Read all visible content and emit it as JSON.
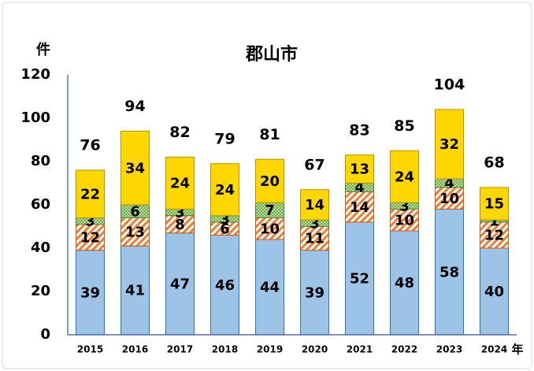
{
  "chart_data": {
    "type": "stacked_bar",
    "title": "郡山市",
    "y_unit": "件",
    "x_unit": "年",
    "categories": [
      "2015",
      "2016",
      "2017",
      "2018",
      "2019",
      "2020",
      "2021",
      "2022",
      "2023",
      "2024"
    ],
    "series": [
      {
        "color": "#9dc3e6",
        "edge": "#2e75b6",
        "hatch": "none",
        "values": [
          39,
          41,
          47,
          46,
          44,
          39,
          52,
          48,
          58,
          40
        ]
      },
      {
        "color": "#ed7d31",
        "edge": "#c55a11",
        "hatch": "diagonal",
        "values": [
          12,
          13,
          8,
          6,
          10,
          11,
          14,
          10,
          10,
          12
        ]
      },
      {
        "color": "#70ad47",
        "edge": "#548235",
        "hatch": "cross",
        "values": [
          3,
          6,
          3,
          3,
          7,
          3,
          4,
          3,
          4,
          1
        ]
      },
      {
        "color": "#ffd700",
        "edge": "#bf9000",
        "hatch": "none",
        "values": [
          22,
          34,
          24,
          24,
          20,
          14,
          13,
          24,
          32,
          15
        ]
      }
    ],
    "totals": [
      76,
      94,
      82,
      79,
      81,
      67,
      83,
      85,
      104,
      68
    ],
    "ylim": [
      0,
      120
    ],
    "yticks": [
      0,
      20,
      40,
      60,
      80,
      100,
      120
    ],
    "grid": false
  }
}
